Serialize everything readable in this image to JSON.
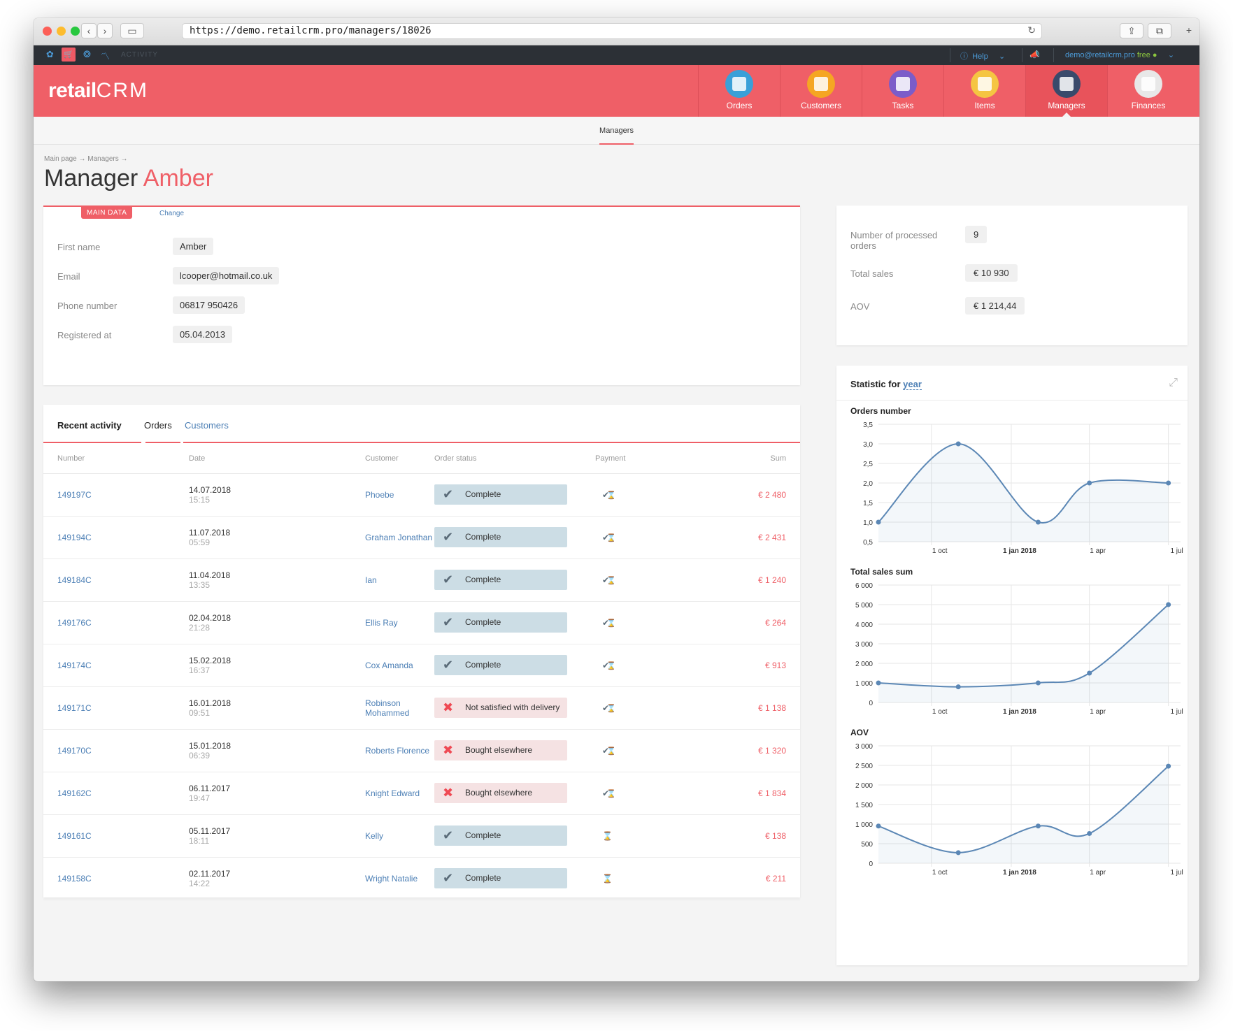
{
  "browser": {
    "url": "https://demo.retailcrm.pro/managers/18026"
  },
  "topbar": {
    "activity_label": "ACTIVITY",
    "help_label": "Help",
    "user_email": "demo@retailcrm.pro",
    "user_plan": "free"
  },
  "brand": {
    "logo_text": "retail",
    "logo_crm": "CRM",
    "accent": "#ef5f67",
    "link_color": "#4c7fb5"
  },
  "nav": {
    "items": [
      {
        "label": "Orders",
        "icon": "cart-icon",
        "color": "#3aa0d8"
      },
      {
        "label": "Customers",
        "icon": "customer-icon",
        "color": "#f5a623"
      },
      {
        "label": "Tasks",
        "icon": "tasks-icon",
        "color": "#7b5cc9"
      },
      {
        "label": "Items",
        "icon": "box-icon",
        "color": "#f5c542"
      },
      {
        "label": "Managers",
        "icon": "manager-icon",
        "color": "#3a4a6b"
      },
      {
        "label": "Finances",
        "icon": "finances-icon",
        "color": "#e8e8e8"
      }
    ]
  },
  "subnav": {
    "active": "Managers"
  },
  "page": {
    "breadcrumb": "Main page → Managers →",
    "title_prefix": "Manager",
    "title_name": "Amber"
  },
  "main_data": {
    "tab_label": "MAIN DATA",
    "change_label": "Change",
    "fields": [
      {
        "label": "First name",
        "value": "Amber"
      },
      {
        "label": "Email",
        "value": "lcooper@hotmail.co.uk"
      },
      {
        "label": "Phone number",
        "value": "06817 950426"
      },
      {
        "label": "Registered at",
        "value": "05.04.2013"
      }
    ]
  },
  "stats": {
    "processed_label": "Number of processed orders",
    "processed_value": "9",
    "total_sales_label": "Total sales",
    "total_sales_value": "€ 10 930",
    "aov_label": "AOV",
    "aov_value": "€ 1 214,44"
  },
  "activity": {
    "tabs": {
      "recent": "Recent activity",
      "orders": "Orders",
      "customers": "Customers"
    },
    "columns": {
      "number": "Number",
      "date": "Date",
      "customer": "Customer",
      "status": "Order status",
      "payment": "Payment",
      "sum": "Sum"
    },
    "rows": [
      {
        "number": "149197C",
        "date": "14.07.2018",
        "time": "15:15",
        "customer": "Phoebe",
        "status": "Complete",
        "ok": true,
        "payment": "partial",
        "sum": "€ 2 480"
      },
      {
        "number": "149194C",
        "date": "11.07.2018",
        "time": "05:59",
        "customer": "Graham Jonathan",
        "status": "Complete",
        "ok": true,
        "payment": "partial",
        "sum": "€ 2 431"
      },
      {
        "number": "149184C",
        "date": "11.04.2018",
        "time": "13:35",
        "customer": "Ian",
        "status": "Complete",
        "ok": true,
        "payment": "partial",
        "sum": "€ 1 240"
      },
      {
        "number": "149176C",
        "date": "02.04.2018",
        "time": "21:28",
        "customer": "Ellis Ray",
        "status": "Complete",
        "ok": true,
        "payment": "partial",
        "sum": "€ 264"
      },
      {
        "number": "149174C",
        "date": "15.02.2018",
        "time": "16:37",
        "customer": "Cox Amanda",
        "status": "Complete",
        "ok": true,
        "payment": "partial",
        "sum": "€ 913"
      },
      {
        "number": "149171C",
        "date": "16.01.2018",
        "time": "09:51",
        "customer": "Robinson Mohammed",
        "status": "Not satisfied with delivery",
        "ok": false,
        "payment": "partial",
        "sum": "€ 1 138"
      },
      {
        "number": "149170C",
        "date": "15.01.2018",
        "time": "06:39",
        "customer": "Roberts Florence",
        "status": "Bought elsewhere",
        "ok": false,
        "payment": "partial",
        "sum": "€ 1 320"
      },
      {
        "number": "149162C",
        "date": "06.11.2017",
        "time": "19:47",
        "customer": "Knight Edward",
        "status": "Bought elsewhere",
        "ok": false,
        "payment": "partial",
        "sum": "€ 1 834"
      },
      {
        "number": "149161C",
        "date": "05.11.2017",
        "time": "18:11",
        "customer": "Kelly",
        "status": "Complete",
        "ok": true,
        "payment": "pending",
        "sum": "€ 138"
      },
      {
        "number": "149158C",
        "date": "02.11.2017",
        "time": "14:22",
        "customer": "Wright Natalie",
        "status": "Complete",
        "ok": true,
        "payment": "pending",
        "sum": "€ 211"
      }
    ]
  },
  "statistic": {
    "title": "Statistic for",
    "period": "year"
  },
  "chart_data": [
    {
      "type": "area",
      "title": "Orders number",
      "x": [
        "2017-08-01",
        "2017-11-01",
        "2018-02-01",
        "2018-04-01",
        "2018-07-01"
      ],
      "values": [
        1.0,
        3.0,
        1.0,
        2.0,
        2.0
      ],
      "x_ticks": [
        "1 oct",
        "1 jan 2018",
        "1 apr",
        "1 jul"
      ],
      "y_ticks": [
        "0,5",
        "1,0",
        "1,5",
        "2,0",
        "2,5",
        "3,0",
        "3,5"
      ],
      "ylim": [
        0.5,
        3.5
      ],
      "color": "#5b87b5"
    },
    {
      "type": "area",
      "title": "Total sales sum",
      "x": [
        "2017-08-01",
        "2017-11-01",
        "2018-02-01",
        "2018-04-01",
        "2018-07-01"
      ],
      "values": [
        1000,
        800,
        1000,
        1500,
        5000
      ],
      "x_ticks": [
        "1 oct",
        "1 jan 2018",
        "1 apr",
        "1 jul"
      ],
      "y_ticks": [
        "0",
        "1 000",
        "2 000",
        "3 000",
        "4 000",
        "5 000",
        "6 000"
      ],
      "ylim": [
        0,
        6000
      ],
      "color": "#5b87b5"
    },
    {
      "type": "area",
      "title": "AOV",
      "x": [
        "2017-08-01",
        "2017-11-01",
        "2018-02-01",
        "2018-04-01",
        "2018-07-01"
      ],
      "values": [
        950,
        270,
        950,
        760,
        2480
      ],
      "x_ticks": [
        "1 oct",
        "1 jan 2018",
        "1 apr",
        "1 jul"
      ],
      "y_ticks": [
        "0",
        "500",
        "1 000",
        "1 500",
        "2 000",
        "2 500",
        "3 000"
      ],
      "ylim": [
        0,
        3000
      ],
      "color": "#5b87b5"
    }
  ]
}
